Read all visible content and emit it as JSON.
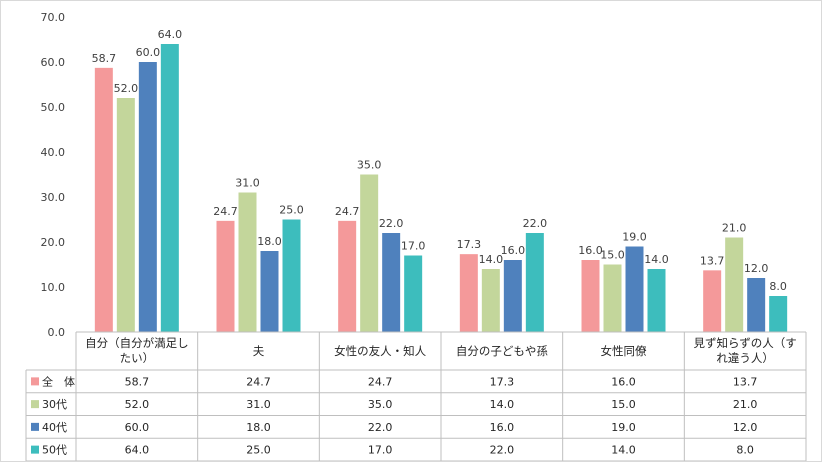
{
  "chart_data": {
    "type": "bar",
    "title": "",
    "xlabel": "",
    "ylabel": "",
    "ylim": [
      0,
      70
    ],
    "y_ticks": [
      "0.0",
      "10.0",
      "20.0",
      "30.0",
      "40.0",
      "50.0",
      "60.0",
      "70.0"
    ],
    "grid": false,
    "legend_placement": "table-left",
    "categories": [
      "自分（自分が満足したい）",
      "夫",
      "女性の友人・知人",
      "自分の子どもや孫",
      "女性同僚",
      "見ず知らずの人（すれ違う人）"
    ],
    "category_lines": [
      [
        "自分（自分が満足し",
        "たい）"
      ],
      [
        "夫"
      ],
      [
        "女性の友人・知人"
      ],
      [
        "自分の子どもや孫"
      ],
      [
        "女性同僚"
      ],
      [
        "見ず知らずの人（す",
        "れ違う人）"
      ]
    ],
    "series": [
      {
        "name": "全　体",
        "color": "#f4999a",
        "values": [
          58.7,
          24.7,
          24.7,
          17.3,
          16.0,
          13.7
        ],
        "labels": [
          "58.7",
          "24.7",
          "24.7",
          "17.3",
          "16.0",
          "13.7"
        ]
      },
      {
        "name": "30代",
        "color": "#c3d69b",
        "values": [
          52.0,
          31.0,
          35.0,
          14.0,
          15.0,
          21.0
        ],
        "labels": [
          "52.0",
          "31.0",
          "35.0",
          "14.0",
          "15.0",
          "21.0"
        ]
      },
      {
        "name": "40代",
        "color": "#4f81bd",
        "values": [
          60.0,
          18.0,
          22.0,
          16.0,
          19.0,
          12.0
        ],
        "labels": [
          "60.0",
          "18.0",
          "22.0",
          "16.0",
          "19.0",
          "12.0"
        ]
      },
      {
        "name": "50代",
        "color": "#3dbdbd",
        "values": [
          64.0,
          25.0,
          17.0,
          22.0,
          14.0,
          8.0
        ],
        "labels": [
          "64.0",
          "25.0",
          "17.0",
          "22.0",
          "14.0",
          "8.0"
        ]
      }
    ]
  }
}
